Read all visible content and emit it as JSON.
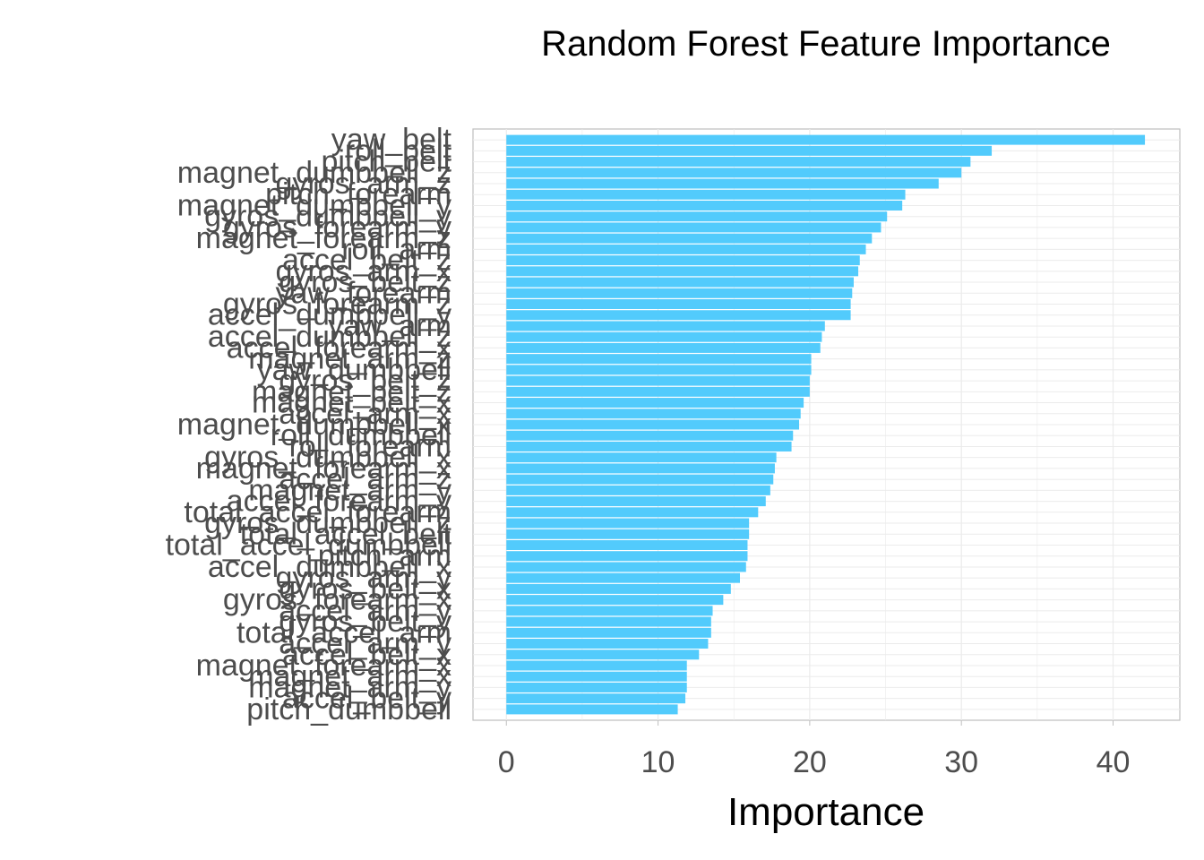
{
  "chart_data": {
    "type": "bar",
    "orientation": "horizontal",
    "title": "Random Forest Feature Importance",
    "xlabel": "Importance",
    "ylabel": "",
    "xlim": [
      -2.2,
      44.4
    ],
    "xticks": [
      0,
      10,
      20,
      30,
      40
    ],
    "grid": true,
    "bar_color": "#52cbfc",
    "categories": [
      "yaw_belt",
      "roll_belt",
      "pitch_belt",
      "magnet_dumbbell_z",
      "gyros_arm_z",
      "pitch_forearm",
      "magnet_dumbbell_y",
      "gyros_dumbbell_y",
      "gyros_forearm_y",
      "magnet_forearm_z",
      "roll_arm",
      "accel_belt_z",
      "gyros_arm_x",
      "gyros_belt_z",
      "yaw_forearm",
      "gyros_forearm_z",
      "accel_dumbbell_y",
      "yaw_arm",
      "accel_dumbbell_z",
      "accel_forearm_x",
      "magnet_arm_z",
      "yaw_dumbbell",
      "gyros_belt_z",
      "magnet_belt_z",
      "magnet_belt_x",
      "accel_arm_x",
      "magnet_dumbbell_x",
      "roll_dumbbell",
      "roll_forearm",
      "gyros_dumbbell_x",
      "magnet_forearm_x",
      "accel_arm_z",
      "magnet_arm_y",
      "accel_forearm_y",
      "total_accel_forearm",
      "gyros_dumbbell_z",
      "total_accel_belt",
      "total_accel_dumbbell",
      "pitch_arm",
      "accel_dumbbell_x",
      "gyros_arm_y",
      "gyros_belt_x",
      "gyros_forearm_x",
      "accel_arm_y",
      "gyros_belt_y",
      "total_accel_arm",
      "accel_arm_y",
      "accel_belt_x",
      "magnet_forearm_x",
      "magnet_arm_x",
      "magnet_arm_y",
      "accel_belt_y",
      "pitch_dumbbell"
    ],
    "values": [
      42.1,
      32.0,
      30.6,
      30.0,
      28.5,
      26.3,
      26.1,
      25.1,
      24.7,
      24.1,
      23.7,
      23.3,
      23.2,
      22.9,
      22.8,
      22.7,
      22.7,
      21.0,
      20.8,
      20.7,
      20.1,
      20.1,
      20.0,
      20.0,
      19.6,
      19.4,
      19.3,
      18.9,
      18.8,
      17.8,
      17.7,
      17.6,
      17.4,
      17.1,
      16.6,
      16.0,
      16.0,
      15.9,
      15.9,
      15.8,
      15.4,
      14.8,
      14.3,
      13.6,
      13.5,
      13.5,
      13.3,
      12.7,
      11.9,
      11.9,
      11.9,
      11.8,
      11.3
    ]
  }
}
